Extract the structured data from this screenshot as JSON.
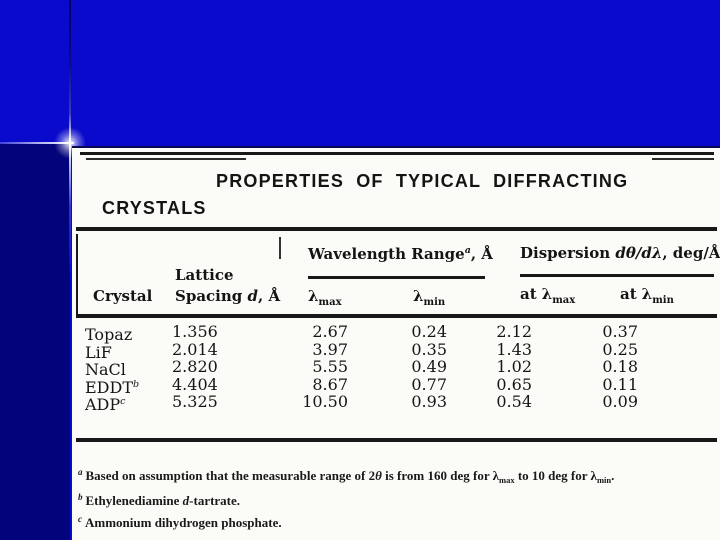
{
  "slide": {
    "colors": {
      "background_blue": "#0A0ACC",
      "panel_navy": "#03037B",
      "accent_glow": "#FFFFFF",
      "paper": "#FBFBF7",
      "ink": "#161616"
    }
  },
  "table": {
    "title_line1": "PROPERTIES OF TYPICAL DIFFRACTING",
    "title_line2": "CRYSTALS",
    "group1": {
      "pre": "Wavelength Range",
      "sup": "a",
      "post": ", Å"
    },
    "group2": {
      "pre": "Dispersion ",
      "italic": "dθ/dλ",
      "post": ", deg/Å"
    },
    "col_crystal": "Crystal",
    "col_lattice": {
      "line1": "Lattice",
      "line2_pre": "Spacing ",
      "line2_italic": "d",
      "line2_post": ", Å"
    },
    "lambda": "λ",
    "sub_max": "max",
    "sub_min": "min",
    "at": "at",
    "rows": [
      {
        "crystal": "Topaz",
        "sup": "",
        "lattice": "1.356",
        "lambda_max": "2.67",
        "lambda_min": "0.24",
        "disp_max": "2.12",
        "disp_min": "0.37"
      },
      {
        "crystal": "LiF",
        "sup": "",
        "lattice": "2.014",
        "lambda_max": "3.97",
        "lambda_min": "0.35",
        "disp_max": "1.43",
        "disp_min": "0.25"
      },
      {
        "crystal": "NaCl",
        "sup": "",
        "lattice": "2.820",
        "lambda_max": "5.55",
        "lambda_min": "0.49",
        "disp_max": "1.02",
        "disp_min": "0.18"
      },
      {
        "crystal": "EDDT",
        "sup": "b",
        "lattice": "4.404",
        "lambda_max": "8.67",
        "lambda_min": "0.77",
        "disp_max": "0.65",
        "disp_min": "0.11"
      },
      {
        "crystal": "ADP",
        "sup": "c",
        "lattice": "5.325",
        "lambda_max": "10.50",
        "lambda_min": "0.93",
        "disp_max": "0.54",
        "disp_min": "0.09"
      }
    ],
    "footnotes": {
      "a": {
        "marker": "a",
        "t1": "Based on assumption that the measurable range of 2",
        "i1": "θ",
        "t2": " is from 160 deg for ",
        "l1": "λ",
        "s1": "max",
        "t3": " to 10 deg for ",
        "l2": "λ",
        "s2": "min",
        "t4": "."
      },
      "b": {
        "marker": "b",
        "t1": "Ethylenediamine ",
        "i1": "d",
        "t2": "-tartrate."
      },
      "c": {
        "marker": "c",
        "t1": "Ammonium dihydrogen phosphate."
      }
    }
  },
  "chart_data": {
    "type": "table",
    "title": "Properties of Typical Diffracting Crystals",
    "columns": [
      "Crystal",
      "Lattice Spacing d, Å",
      "Wavelength Range λmax, Å",
      "Wavelength Range λmin, Å",
      "Dispersion at λmax, deg/Å",
      "Dispersion at λmin, deg/Å"
    ],
    "rows": [
      [
        "Topaz",
        1.356,
        2.67,
        0.24,
        2.12,
        0.37
      ],
      [
        "LiF",
        2.014,
        3.97,
        0.35,
        1.43,
        0.25
      ],
      [
        "NaCl",
        2.82,
        5.55,
        0.49,
        1.02,
        0.18
      ],
      [
        "EDDT",
        4.404,
        8.67,
        0.77,
        0.65,
        0.11
      ],
      [
        "ADP",
        5.325,
        10.5,
        0.93,
        0.54,
        0.09
      ]
    ]
  }
}
